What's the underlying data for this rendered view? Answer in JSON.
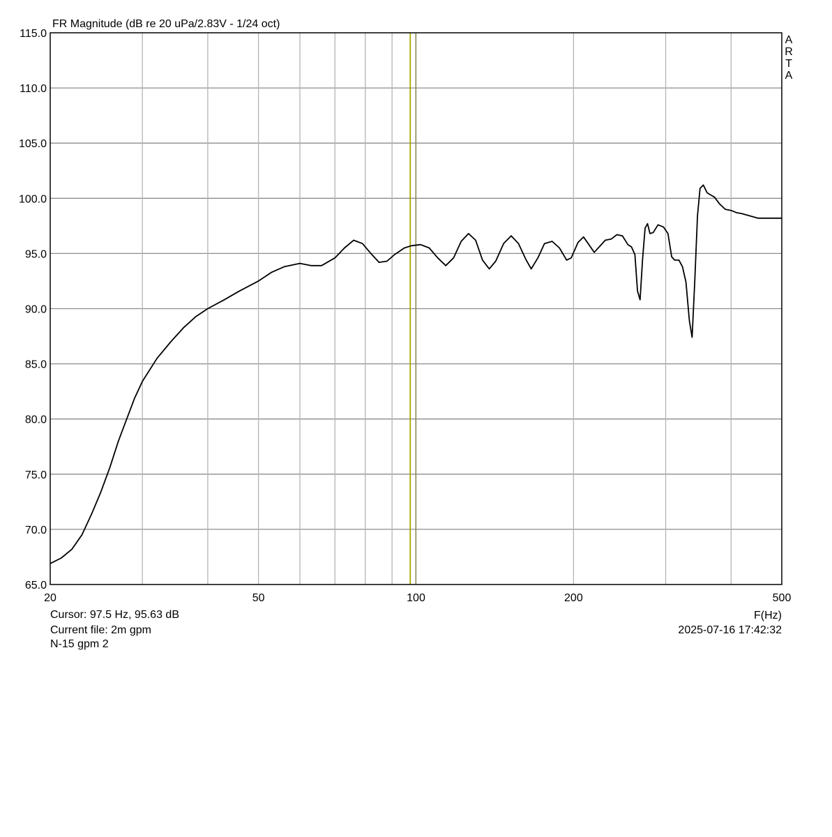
{
  "chart_data": {
    "type": "line",
    "title": "FR Magnitude (dB re 20 uPa/2.83V - 1/24 oct)",
    "xlabel": "F(Hz)",
    "ylabel": "",
    "x_scale": "log",
    "xlim": [
      20,
      500
    ],
    "ylim": [
      65,
      115
    ],
    "x_ticks": [
      20,
      50,
      100,
      200,
      500
    ],
    "x_tick_labels": [
      "20",
      "50",
      "100",
      "200",
      "500"
    ],
    "x_minor_grid": [
      30,
      40,
      60,
      70,
      80,
      90,
      300,
      400
    ],
    "y_ticks": [
      65,
      70,
      75,
      80,
      85,
      90,
      95,
      100,
      105,
      110,
      115
    ],
    "y_tick_labels": [
      "65.0",
      "70.0",
      "75.0",
      "80.0",
      "85.0",
      "90.0",
      "95.0",
      "100.0",
      "105.0",
      "110.0",
      "115.0"
    ],
    "grid": true,
    "cursor": {
      "x": 97.5,
      "color": "#a8a800"
    },
    "watermark": "ARTA",
    "series": [
      {
        "color": "#000000",
        "points": [
          [
            20.0,
            66.9
          ],
          [
            21.0,
            67.4
          ],
          [
            22.0,
            68.2
          ],
          [
            23.0,
            69.5
          ],
          [
            24.0,
            71.4
          ],
          [
            25.0,
            73.4
          ],
          [
            26.0,
            75.6
          ],
          [
            27.0,
            78.0
          ],
          [
            28.0,
            80.0
          ],
          [
            29.0,
            81.9
          ],
          [
            30.0,
            83.4
          ],
          [
            32.0,
            85.5
          ],
          [
            34.0,
            87.0
          ],
          [
            36.0,
            88.3
          ],
          [
            38.0,
            89.3
          ],
          [
            40.0,
            90.0
          ],
          [
            43.0,
            90.8
          ],
          [
            46.0,
            91.6
          ],
          [
            50.0,
            92.5
          ],
          [
            53.0,
            93.3
          ],
          [
            56.0,
            93.8
          ],
          [
            60.0,
            94.1
          ],
          [
            63.0,
            93.9
          ],
          [
            66.0,
            93.9
          ],
          [
            70.0,
            94.6
          ],
          [
            73.0,
            95.5
          ],
          [
            76.0,
            96.2
          ],
          [
            79.0,
            95.9
          ],
          [
            82.0,
            95.0
          ],
          [
            85.0,
            94.2
          ],
          [
            88.0,
            94.3
          ],
          [
            91.0,
            94.9
          ],
          [
            95.0,
            95.5
          ],
          [
            98.0,
            95.7
          ],
          [
            102.0,
            95.8
          ],
          [
            106.0,
            95.5
          ],
          [
            110.0,
            94.6
          ],
          [
            114.0,
            93.9
          ],
          [
            118.0,
            94.6
          ],
          [
            122.0,
            96.1
          ],
          [
            126.0,
            96.8
          ],
          [
            130.0,
            96.2
          ],
          [
            134.0,
            94.4
          ],
          [
            138.0,
            93.6
          ],
          [
            142.0,
            94.3
          ],
          [
            147.0,
            95.9
          ],
          [
            152.0,
            96.6
          ],
          [
            157.0,
            95.9
          ],
          [
            162.0,
            94.5
          ],
          [
            166.0,
            93.6
          ],
          [
            171.0,
            94.6
          ],
          [
            176.0,
            95.9
          ],
          [
            182.0,
            96.1
          ],
          [
            188.0,
            95.5
          ],
          [
            194.0,
            94.4
          ],
          [
            198.0,
            94.6
          ],
          [
            204.0,
            96.0
          ],
          [
            209.0,
            96.5
          ],
          [
            214.0,
            95.8
          ],
          [
            219.0,
            95.1
          ],
          [
            224.0,
            95.6
          ],
          [
            230.0,
            96.2
          ],
          [
            236.0,
            96.3
          ],
          [
            242.0,
            96.7
          ],
          [
            248.0,
            96.6
          ],
          [
            254.0,
            95.8
          ],
          [
            258.0,
            95.6
          ],
          [
            262.0,
            94.9
          ],
          [
            265.0,
            91.6
          ],
          [
            268.0,
            90.8
          ],
          [
            271.0,
            94.5
          ],
          [
            274.0,
            97.3
          ],
          [
            277.0,
            97.7
          ],
          [
            280.0,
            96.8
          ],
          [
            284.0,
            96.9
          ],
          [
            290.0,
            97.6
          ],
          [
            297.0,
            97.4
          ],
          [
            303.0,
            96.8
          ],
          [
            308.0,
            94.7
          ],
          [
            312.0,
            94.4
          ],
          [
            318.0,
            94.4
          ],
          [
            323.0,
            93.8
          ],
          [
            328.0,
            92.4
          ],
          [
            333.0,
            88.9
          ],
          [
            337.0,
            87.4
          ],
          [
            341.0,
            92.6
          ],
          [
            345.0,
            98.4
          ],
          [
            349.0,
            100.9
          ],
          [
            354.0,
            101.2
          ],
          [
            360.0,
            100.5
          ],
          [
            366.0,
            100.3
          ],
          [
            372.0,
            100.1
          ],
          [
            380.0,
            99.5
          ],
          [
            390.0,
            99.0
          ],
          [
            400.0,
            98.9
          ],
          [
            410.0,
            98.7
          ],
          [
            420.0,
            98.6
          ],
          [
            435.0,
            98.4
          ],
          [
            450.0,
            98.2
          ],
          [
            470.0,
            98.2
          ],
          [
            500.0,
            98.2
          ]
        ]
      }
    ]
  },
  "info": {
    "cursor_readout": "Cursor: 97.5 Hz, 95.63 dB",
    "current_file": "Current file: 2m gpm",
    "note": "N-15 gpm 2",
    "timestamp": "2025-07-16  17:42:32"
  }
}
